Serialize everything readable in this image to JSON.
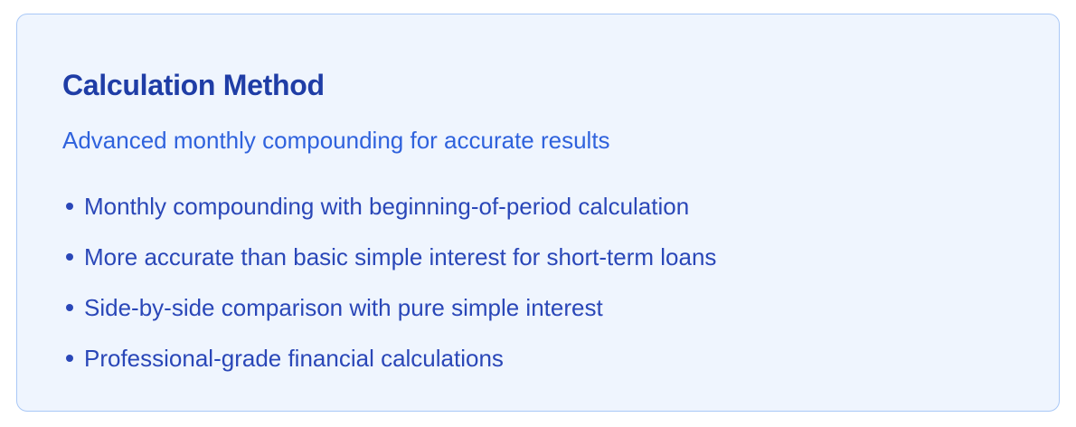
{
  "card": {
    "title": "Calculation Method",
    "subtitle": "Advanced monthly compounding for accurate results",
    "items": [
      "Monthly compounding with beginning-of-period calculation",
      "More accurate than basic simple interest for short-term loans",
      "Side-by-side comparison with pure simple interest",
      "Professional-grade financial calculations"
    ]
  },
  "colors": {
    "card_background": "#eff5fe",
    "card_border": "#a9c8f6",
    "title": "#1f3da6",
    "subtitle": "#2f62dd",
    "list_text": "#2a47b8"
  },
  "icons": {
    "bullet": "bullet-dot-icon"
  }
}
